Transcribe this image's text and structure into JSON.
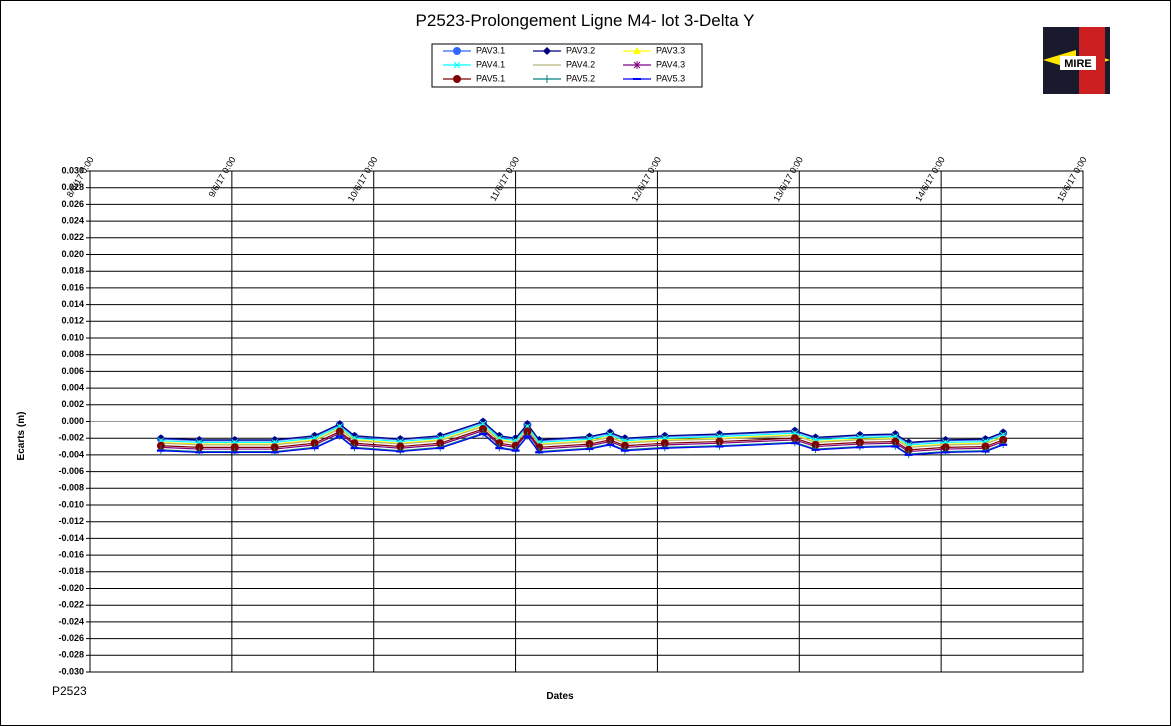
{
  "chart_data": {
    "type": "line",
    "title": "P2523-Prolongement  Ligne  M4- lot 3-Delta  Y",
    "y_label": "Ecarts (m)",
    "x_label": "Dates",
    "footer": "P2523",
    "logo_text": "MIRE",
    "grid": true,
    "legend": "top",
    "xlim": [
      "2017-06-08 00:00",
      "2017-06-15 00:00"
    ],
    "xticks": [
      {
        "value": "2017-06-08 00:00",
        "label": "8/6/17 0:00"
      },
      {
        "value": "2017-06-09 00:00",
        "label": "9/6/17 0:00"
      },
      {
        "value": "2017-06-10 00:00",
        "label": "10/6/17 0:00"
      },
      {
        "value": "2017-06-11 00:00",
        "label": "11/6/17 0:00"
      },
      {
        "value": "2017-06-12 00:00",
        "label": "12/6/17 0:00"
      },
      {
        "value": "2017-06-13 00:00",
        "label": "13/6/17 0:00"
      },
      {
        "value": "2017-06-14 00:00",
        "label": "14/6/17 0:00"
      },
      {
        "value": "2017-06-15 00:00",
        "label": "15/6/17 0:00"
      }
    ],
    "ylim": [
      -0.03,
      0.03
    ],
    "yticks": [
      {
        "value": 0.03,
        "label": "0.030"
      },
      {
        "value": 0.028,
        "label": "0.028"
      },
      {
        "value": 0.026,
        "label": "0.026"
      },
      {
        "value": 0.024,
        "label": "0.024"
      },
      {
        "value": 0.022,
        "label": "0.022"
      },
      {
        "value": 0.02,
        "label": "0.020"
      },
      {
        "value": 0.018,
        "label": "0.018"
      },
      {
        "value": 0.016,
        "label": "0.016"
      },
      {
        "value": 0.014,
        "label": "0.014"
      },
      {
        "value": 0.012,
        "label": "0.012"
      },
      {
        "value": 0.01,
        "label": "0.010"
      },
      {
        "value": 0.008,
        "label": "0.008"
      },
      {
        "value": 0.006,
        "label": "0.006"
      },
      {
        "value": 0.004,
        "label": "0.004"
      },
      {
        "value": 0.002,
        "label": "0.002"
      },
      {
        "value": 0,
        "label": "0.000"
      },
      {
        "value": -0.002,
        "label": "-0.002"
      },
      {
        "value": -0.004,
        "label": "-0.004"
      },
      {
        "value": -0.006,
        "label": "-0.006"
      },
      {
        "value": -0.008,
        "label": "-0.008"
      },
      {
        "value": -0.01,
        "label": "-0.010"
      },
      {
        "value": -0.012,
        "label": "-0.012"
      },
      {
        "value": -0.014,
        "label": "-0.014"
      },
      {
        "value": -0.016,
        "label": "-0.016"
      },
      {
        "value": -0.018,
        "label": "-0.018"
      },
      {
        "value": -0.02,
        "label": "-0.020"
      },
      {
        "value": -0.022,
        "label": "-0.022"
      },
      {
        "value": -0.024,
        "label": "-0.024"
      },
      {
        "value": -0.026,
        "label": "-0.026"
      },
      {
        "value": -0.028,
        "label": "-0.028"
      },
      {
        "value": -0.03,
        "label": "-0.030"
      }
    ],
    "x": [
      "2017-06-08 12:00",
      "2017-06-08 18:30",
      "2017-06-09 00:30",
      "2017-06-09 07:15",
      "2017-06-09 14:00",
      "2017-06-09 18:15",
      "2017-06-09 20:45",
      "2017-06-10 04:30",
      "2017-06-10 11:15",
      "2017-06-10 18:30",
      "2017-06-10 21:15",
      "2017-06-11 00:00",
      "2017-06-11 02:00",
      "2017-06-11 04:00",
      "2017-06-11 12:30",
      "2017-06-11 16:00",
      "2017-06-11 18:30",
      "2017-06-12 01:15",
      "2017-06-12 10:30",
      "2017-06-12 23:15",
      "2017-06-13 02:45",
      "2017-06-13 10:15",
      "2017-06-13 16:15",
      "2017-06-13 18:30",
      "2017-06-14 00:45",
      "2017-06-14 07:30",
      "2017-06-14 10:30"
    ],
    "series": [
      {
        "name": "PAV3.1",
        "color": "#3366ff",
        "marker": "circle",
        "values": [
          -0.0021,
          -0.0023,
          -0.0023,
          -0.0023,
          -0.0018,
          -0.0004,
          -0.0018,
          -0.0022,
          -0.0018,
          -0.0001,
          -0.0018,
          -0.0021,
          -0.0004,
          -0.0023,
          -0.0019,
          -0.0014,
          -0.0021,
          -0.0018,
          -0.0016,
          -0.0012,
          -0.002,
          -0.0017,
          -0.0016,
          -0.0026,
          -0.0023,
          -0.0022,
          -0.0014
        ]
      },
      {
        "name": "PAV3.2",
        "color": "#000080",
        "marker": "diamond",
        "values": [
          -0.002,
          -0.0022,
          -0.0022,
          -0.0022,
          -0.0017,
          -0.0003,
          -0.0017,
          -0.0021,
          -0.0017,
          0,
          -0.0017,
          -0.002,
          -0.0003,
          -0.0022,
          -0.0018,
          -0.0013,
          -0.002,
          -0.0017,
          -0.0015,
          -0.0011,
          -0.0019,
          -0.0016,
          -0.0015,
          -0.0025,
          -0.0022,
          -0.0021,
          -0.0013
        ]
      },
      {
        "name": "PAV3.3",
        "color": "#ffff00",
        "marker": "triangle",
        "values": [
          -0.0025,
          -0.0027,
          -0.0027,
          -0.0027,
          -0.0022,
          -0.0008,
          -0.0022,
          -0.0026,
          -0.0022,
          -0.0005,
          -0.0022,
          -0.0025,
          -0.0008,
          -0.0027,
          -0.0023,
          -0.0018,
          -0.0025,
          -0.0022,
          -0.002,
          -0.0016,
          -0.0024,
          -0.0021,
          -0.002,
          -0.003,
          -0.0027,
          -0.0026,
          -0.0018
        ]
      },
      {
        "name": "PAV4.1",
        "color": "#00ffff",
        "marker": "x",
        "values": [
          -0.0023,
          -0.0025,
          -0.0025,
          -0.0025,
          -0.002,
          -0.0006,
          -0.002,
          -0.0024,
          -0.002,
          -0.0003,
          -0.002,
          -0.0023,
          -0.0006,
          -0.0025,
          -0.0021,
          -0.0016,
          -0.0023,
          -0.002,
          -0.0018,
          -0.0014,
          -0.0022,
          -0.0019,
          -0.0018,
          -0.0028,
          -0.0025,
          -0.0024,
          -0.0016
        ]
      },
      {
        "name": "PAV4.2",
        "color": "#b3b37a",
        "marker": "none",
        "values": [
          -0.0026,
          -0.0028,
          -0.0028,
          -0.0028,
          -0.0023,
          -0.0009,
          -0.0023,
          -0.0027,
          -0.0023,
          -0.0006,
          -0.0023,
          -0.0026,
          -0.0009,
          -0.0028,
          -0.0024,
          -0.0019,
          -0.0026,
          -0.0023,
          -0.0021,
          -0.0017,
          -0.0025,
          -0.0022,
          -0.0021,
          -0.0031,
          -0.0028,
          -0.0027,
          -0.0019
        ]
      },
      {
        "name": "PAV4.3",
        "color": "#800080",
        "marker": "star",
        "values": [
          -0.0031,
          -0.0033,
          -0.0033,
          -0.0033,
          -0.0028,
          -0.0014,
          -0.0028,
          -0.0032,
          -0.0028,
          -0.0011,
          -0.0028,
          -0.0031,
          -0.0014,
          -0.0033,
          -0.0029,
          -0.0024,
          -0.0031,
          -0.0028,
          -0.0026,
          -0.0022,
          -0.003,
          -0.0027,
          -0.0026,
          -0.0036,
          -0.0033,
          -0.0032,
          -0.0024
        ]
      },
      {
        "name": "PAV5.1",
        "color": "#800000",
        "marker": "circle",
        "values": [
          -0.0029,
          -0.0031,
          -0.0031,
          -0.0031,
          -0.0026,
          -0.0012,
          -0.0026,
          -0.003,
          -0.0026,
          -0.0009,
          -0.0026,
          -0.0029,
          -0.0012,
          -0.0031,
          -0.0027,
          -0.0022,
          -0.0029,
          -0.0026,
          -0.0024,
          -0.002,
          -0.0028,
          -0.0025,
          -0.0024,
          -0.0034,
          -0.0031,
          -0.003,
          -0.0022
        ]
      },
      {
        "name": "PAV5.2",
        "color": "#008080",
        "marker": "plus",
        "values": [
          -0.0034,
          -0.0036,
          -0.0036,
          -0.0036,
          -0.0031,
          -0.0017,
          -0.0031,
          -0.0035,
          -0.0031,
          -0.0014,
          -0.0031,
          -0.0034,
          -0.0017,
          -0.0036,
          -0.0032,
          -0.0027,
          -0.0034,
          -0.0031,
          -0.0029,
          -0.0025,
          -0.0033,
          -0.003,
          -0.0029,
          -0.0039,
          -0.0036,
          -0.0035,
          -0.0027
        ]
      },
      {
        "name": "PAV5.3",
        "color": "#0000ff",
        "marker": "dash",
        "values": [
          -0.0035,
          -0.0037,
          -0.0037,
          -0.0037,
          -0.0032,
          -0.0018,
          -0.0032,
          -0.0036,
          -0.0032,
          -0.0015,
          -0.0032,
          -0.0035,
          -0.0018,
          -0.0037,
          -0.0033,
          -0.0028,
          -0.0035,
          -0.0032,
          -0.003,
          -0.0026,
          -0.0034,
          -0.0031,
          -0.003,
          -0.004,
          -0.0037,
          -0.0036,
          -0.0028
        ]
      }
    ]
  }
}
